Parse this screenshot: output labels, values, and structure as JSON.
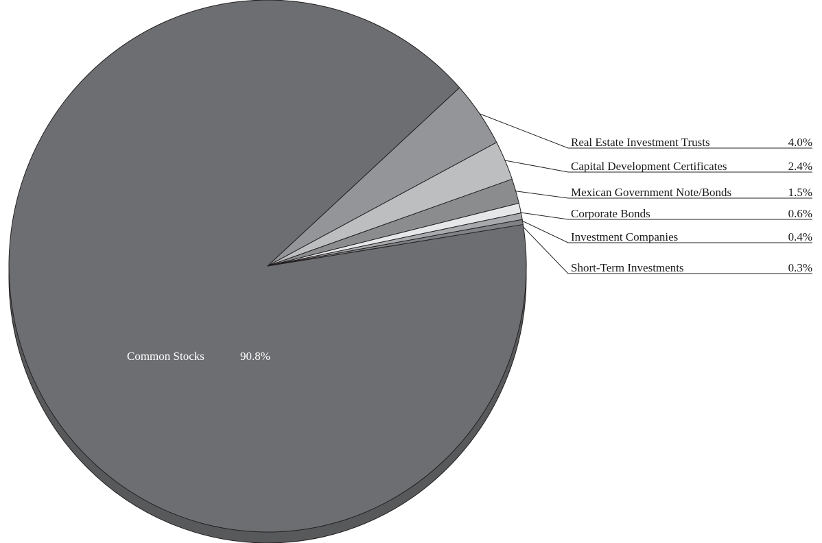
{
  "chart_data": {
    "type": "pie",
    "title": "",
    "slices": [
      {
        "label": "Common Stocks",
        "value": 90.8,
        "value_label": "90.8%",
        "color": "#6d6e71"
      },
      {
        "label": "Real Estate Investment Trusts",
        "value": 4.0,
        "value_label": "4.0%",
        "color": "#939598"
      },
      {
        "label": "Capital Development Certificates",
        "value": 2.4,
        "value_label": "2.4%",
        "color": "#bcbec0"
      },
      {
        "label": "Mexican Government Note/Bonds",
        "value": 1.5,
        "value_label": "1.5%",
        "color": "#8a8c8e"
      },
      {
        "label": "Corporate Bonds",
        "value": 0.6,
        "value_label": "0.6%",
        "color": "#e6e7e8"
      },
      {
        "label": "Investment Companies",
        "value": 0.4,
        "value_label": "0.4%",
        "color": "#a7a9ac"
      },
      {
        "label": "Short-Term Investments",
        "value": 0.3,
        "value_label": "0.3%",
        "color": "#808285"
      }
    ],
    "style": "3d-tilted",
    "legend": "leader-lines-right"
  }
}
